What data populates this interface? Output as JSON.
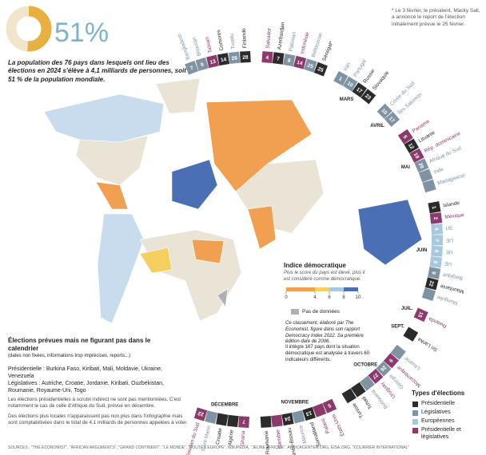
{
  "header": {
    "share": {
      "values": [
        51
      ],
      "value_labels": [
        "51%"
      ],
      "lim": [
        0,
        100
      ],
      "color": "#e8b040",
      "rest_color": "#f1e6cc"
    },
    "intro": "La population des 76 pays dans lesquels ont lieu des élections en 2024 s'élève à 4,1 milliards de personnes, soit 51 % de la population mondiale."
  },
  "note": "* Le 3 février, le président, Macky Sall, a annoncé le report de l'élection initialement prévue le 25 février.",
  "calendar": {
    "months": [
      {
        "entries": [
          {
            "name": "Bangladesh",
            "day": 7,
            "color": "#7f93a3"
          },
          {
            "name": "Bhoutan",
            "day": 9,
            "color": "#7f93a3"
          },
          {
            "name": "Taïwan",
            "day": 13,
            "color": "#8b3a6b"
          },
          {
            "name": "Comores",
            "day": 14,
            "color": "#2b2b2b"
          },
          {
            "name": "Tuvalu",
            "day": 26,
            "color": "#7f93a3"
          },
          {
            "name": "Finlande",
            "day": 28,
            "color": "#2b2b2b"
          }
        ]
      },
      {
        "entries": [
          {
            "name": "Salvador",
            "day": 4,
            "color": "#8b3a6b"
          },
          {
            "name": "Azerbaïdjan",
            "day": 7,
            "color": "#2b2b2b"
          },
          {
            "name": "Pakistan",
            "day": 8,
            "color": "#7f93a3"
          },
          {
            "name": "Indonésie",
            "day": 14,
            "color": "#8b3a6b"
          },
          {
            "name": "Biélorussie",
            "day": 25,
            "color": "#7f93a3"
          },
          {
            "name": "Sénégal*",
            "day": 25,
            "color": "#2b2b2b"
          }
        ]
      },
      {
        "name": "MARS",
        "entries": [
          {
            "name": "Iran",
            "day": 1,
            "color": "#7f93a3"
          },
          {
            "name": "Portugal",
            "day": 10,
            "color": "#7f93a3"
          },
          {
            "name": "Russie",
            "day": 17,
            "color": "#2b2b2b"
          },
          {
            "name": "Slovaquie",
            "day": 23,
            "color": "#2b2b2b"
          }
        ]
      },
      {
        "name": "AVRIL",
        "entries": [
          {
            "name": "Corée du Sud",
            "day": 10,
            "color": "#7f93a3"
          },
          {
            "name": "Îles Salomon",
            "day": 17,
            "color": "#7f93a3"
          }
        ]
      },
      {
        "name": "MAI",
        "entries": [
          {
            "name": "Panama",
            "day": 5,
            "color": "#8b3a6b"
          },
          {
            "name": "Lituanie",
            "day": 12,
            "color": "#2b2b2b"
          },
          {
            "name": "Rép. dominicaine",
            "day": 19,
            "color": "#8b3a6b"
          },
          {
            "name": "Afrique du Sud",
            "day": 29,
            "color": "#7f93a3"
          },
          {
            "name": "Inde",
            "day": null,
            "color": "#7f93a3"
          },
          {
            "name": "Madagascar",
            "day": null,
            "color": "#7f93a3"
          }
        ]
      },
      {
        "name": "JUIN",
        "entries": [
          {
            "name": "Islande",
            "day": 1,
            "color": "#2b2b2b"
          },
          {
            "name": "Mexique",
            "day": 2,
            "color": "#8b3a6b"
          },
          {
            "name": "UE",
            "day": 6,
            "color": "#a9c7dd"
          },
          {
            "name": "UE",
            "day": 7,
            "color": "#a9c7dd"
          },
          {
            "name": "UE",
            "day": 8,
            "color": "#a9c7dd"
          },
          {
            "name": "UE",
            "day": 9,
            "color": "#a9c7dd"
          },
          {
            "name": "Belgique",
            "day": 9,
            "color": "#7f93a3"
          },
          {
            "name": "Mauritanie",
            "day": 22,
            "color": "#2b2b2b"
          },
          {
            "name": "Mongolie",
            "day": null,
            "color": "#7f93a3"
          }
        ]
      },
      {
        "name": "JUIL.",
        "entries": [
          {
            "name": "Rwanda",
            "day": 15,
            "color": "#8b3a6b"
          }
        ]
      },
      {
        "name": "SEPT.",
        "entries": [
          {
            "name": "Sri Lanka",
            "day": null,
            "color": "#2b2b2b"
          }
        ]
      },
      {
        "name": "OCTOBRE",
        "entries": [
          {
            "name": "Lituanie",
            "day": null,
            "color": "#7f93a3"
          },
          {
            "name": "Mozambique",
            "day": 9,
            "color": "#8b3a6b"
          },
          {
            "name": "Géorgie",
            "day": 26,
            "color": "#7f93a3"
          },
          {
            "name": "Uruguay",
            "day": 27,
            "color": "#8b3a6b"
          },
          {
            "name": "Botswana",
            "day": null,
            "color": "#7f93a3"
          },
          {
            "name": "Tchad",
            "day": null,
            "color": "#2b2b2b"
          },
          {
            "name": "Tunisie",
            "day": null,
            "color": "#2b2b2b"
          }
        ]
      },
      {
        "name": "NOVEMBRE",
        "entries": [
          {
            "name": "États-Unis",
            "day": 5,
            "color": "#8b3a6b"
          },
          {
            "name": "Palaos",
            "day": null,
            "color": "#8b3a6b"
          },
          {
            "name": "Somaliland",
            "day": 13,
            "color": "#2b2b2b"
          },
          {
            "name": "Maurice",
            "day": null,
            "color": "#7f93a3"
          },
          {
            "name": "Guinée-Bissau",
            "day": 24,
            "color": "#2b2b2b"
          },
          {
            "name": "Namibie",
            "day": null,
            "color": "#8b3a6b"
          },
          {
            "name": "Roumanie",
            "day": null,
            "color": "#2b2b2b"
          }
        ]
      },
      {
        "name": "DÉCEMBRE",
        "entries": [
          {
            "name": "Ghana",
            "day": 7,
            "color": "#8b3a6b"
          },
          {
            "name": "Algérie",
            "day": null,
            "color": "#2b2b2b"
          },
          {
            "name": "Croatie",
            "day": null,
            "color": "#2b2b2b"
          },
          {
            "name": "Saint-Marin",
            "day": null,
            "color": "#7f93a3"
          },
          {
            "name": "Soudan du Sud",
            "day": 22,
            "color": "#8b3a6b"
          }
        ]
      }
    ]
  },
  "index_legend": {
    "title": "Indice démocratique",
    "subtitle": "Plus le score du pays est élevé, plus il est considéré comme démocratique.",
    "lim": [
      0,
      10
    ],
    "ticks": [
      0,
      4,
      6,
      8,
      10
    ],
    "colors": [
      "#f0a050",
      "#f5d060",
      "#a9c7dd",
      "#4a6fb5"
    ],
    "no_data": "Pas de données",
    "no_data_color": "#b0b0b0",
    "text1": "Ce classement, élaboré par The Economist, figure dans son rapport Democracy Index 2022. Sa première édition date de 2006.",
    "text2": "Il intègre 167 pays dont la situation démocratique est analysée à travers 60 indicateurs différents."
  },
  "unscheduled": {
    "title": "Élections prévues mais ne figurant pas dans le calendrier",
    "subtitle": "(dates non fixées, informations trop imprécises, reports...)",
    "presidential": "Présidentielle : Burkina Faso, Kiribati, Mali, Moldavie, Ukraine, Venezuela",
    "legislative": "Législatives : Autriche, Croatie, Jordanie, Kiribati, Ouzbékistan, Roumanie, Royaume-Uni, Togo",
    "note1": "Les élections présidentielles à scrutin indirect ne sont pas mentionnées. C'est notamment le cas de celle d'Afrique du Sud, prévue en décembre.",
    "note2": "Des élections plus locales n'apparaissent pas non plus dans l'infographie mais sont comptabilisées dans le total de 4,1 milliards de personnes appelées à voter."
  },
  "types": {
    "title": "Types d'élections",
    "items": [
      {
        "name": "Présidentielle",
        "color": "#2b2b2b"
      },
      {
        "name": "Législatives",
        "color": "#7f93a3"
      },
      {
        "name": "Européennes",
        "color": "#a9c7dd"
      },
      {
        "name": "Présidentielle et législatives",
        "color": "#8b3a6b"
      }
    ]
  },
  "sources": "SOURCES : \"THE ECONOMIST\", \"AFRICAN ARGUMENTS\", \"GRAND CONTINENT\", \"LE MONDE\", \"TOUTE L'EUROPE\", WIKIPEDIA, \"JEUNE AFRIQUE\", AFRICACENTER.ORG, EISA.ORG, \"COURRIER INTERNATIONAL\""
}
